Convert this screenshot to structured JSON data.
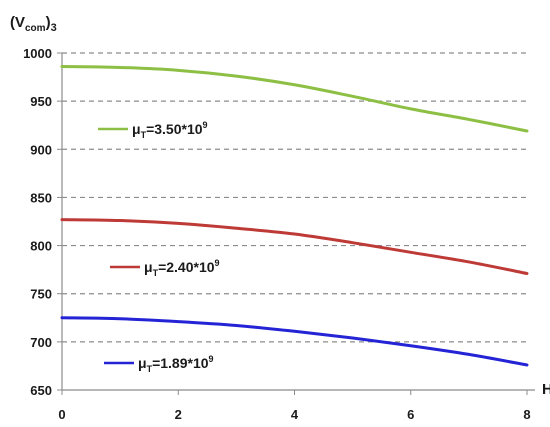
{
  "chart_data": {
    "type": "line",
    "ylabel": {
      "main": "(V",
      "sub": "com",
      "close": ")",
      "tail": "3"
    },
    "xlabel": "H",
    "xlim": [
      0,
      8
    ],
    "ylim": [
      650,
      1000
    ],
    "xticks": [
      0,
      2,
      4,
      6,
      8
    ],
    "yticks": [
      650,
      700,
      750,
      800,
      850,
      900,
      950,
      1000
    ],
    "grid": "horizontal dashed",
    "legend_placement": "inline, left of each curve",
    "series": [
      {
        "name": {
          "mu": "μ",
          "sub": "T",
          "eq": "=3.50*10",
          "sup": "9"
        },
        "color": "#8CBF44",
        "x": [
          0,
          1,
          2,
          3,
          4,
          5,
          6,
          7,
          8
        ],
        "y": [
          986,
          985,
          982,
          976,
          967,
          955,
          942,
          931,
          919
        ]
      },
      {
        "name": {
          "mu": "μ",
          "sub": "T",
          "eq": "=2.40*10",
          "sup": "9"
        },
        "color": "#BE3A36",
        "x": [
          0,
          1,
          2,
          3,
          4,
          5,
          6,
          7,
          8
        ],
        "y": [
          827,
          826,
          823,
          818,
          812,
          803,
          793,
          783,
          771
        ]
      },
      {
        "name": {
          "mu": "μ",
          "sub": "T",
          "eq": "=1.89*10",
          "sup": "9"
        },
        "color": "#2424D6",
        "x": [
          0,
          1,
          2,
          3,
          4,
          5,
          6,
          7,
          8
        ],
        "y": [
          725,
          724,
          721,
          717,
          711,
          704,
          696,
          687,
          676
        ]
      }
    ]
  }
}
